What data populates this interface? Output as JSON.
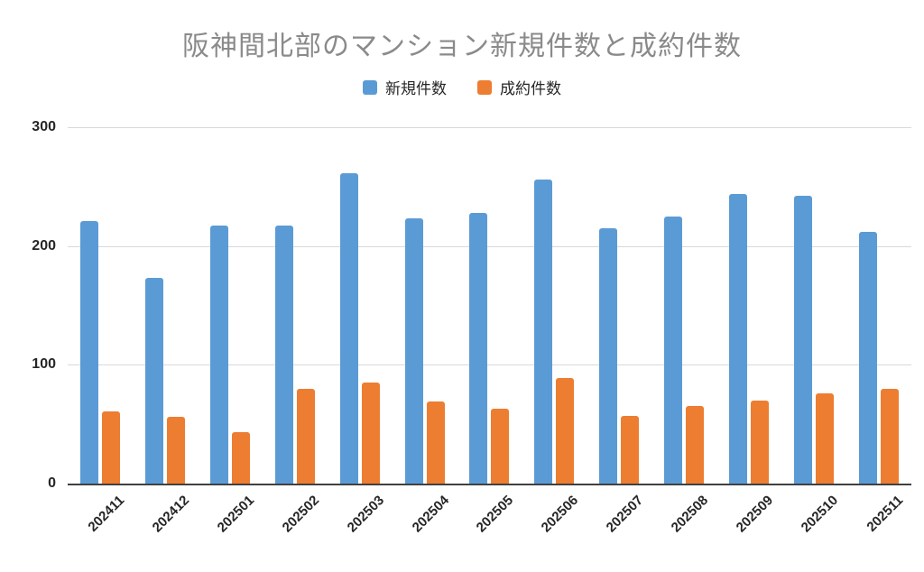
{
  "chart_data": {
    "type": "bar",
    "title": "阪神間北部のマンション新規件数と成約件数",
    "categories": [
      "202411",
      "202412",
      "202501",
      "202502",
      "202503",
      "202504",
      "202505",
      "202506",
      "202507",
      "202508",
      "202509",
      "202510",
      "202511"
    ],
    "series": [
      {
        "name": "新規件数",
        "color": "#5B9BD5",
        "values": [
          221,
          173,
          217,
          217,
          261,
          223,
          228,
          256,
          215,
          225,
          244,
          242,
          212
        ]
      },
      {
        "name": "成約件数",
        "color": "#ED7D31",
        "values": [
          61,
          56,
          43,
          80,
          85,
          69,
          63,
          89,
          57,
          65,
          70,
          76,
          80
        ]
      }
    ],
    "xlabel": "",
    "ylabel": "",
    "ylim": [
      0,
      300
    ],
    "yticks": [
      0,
      100,
      200,
      300
    ],
    "grid": "horizontal",
    "legend_position": "top"
  },
  "colors": {
    "title_text": "#8a8a8a",
    "axis_text": "#262626",
    "gridline": "#d9d9d9",
    "axis_line": "#404040",
    "background": "#ffffff"
  }
}
